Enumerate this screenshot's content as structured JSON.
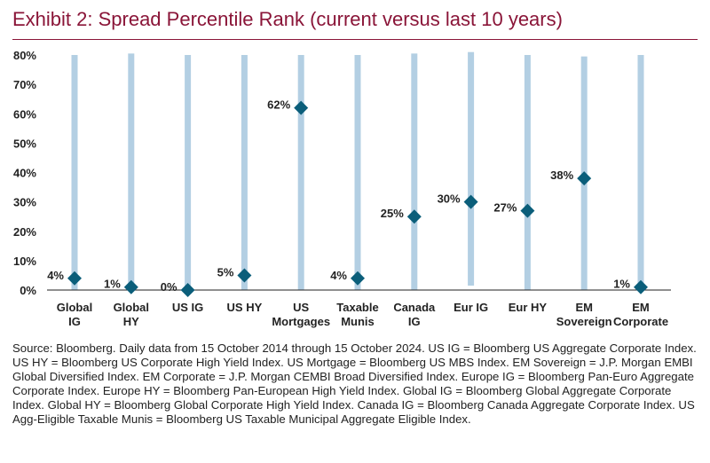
{
  "title": "Exhibit 2: Spread Percentile Rank (current versus last 10 years)",
  "source_note": "Source: Bloomberg. Daily data from 15 October 2014 through 15 October 2024. US IG = Bloomberg US Aggregate Corporate Index. US HY = Bloomberg US Corporate High Yield Index. US Mortgage = Bloomberg US MBS Index. EM Sovereign = J.P. Morgan EMBI Global Diversified Index. EM Corporate = J.P. Morgan CEMBI Broad Diversified Index. Europe IG = Bloomberg Pan-Euro Aggregate Corporate Index. Europe HY = Bloomberg Pan-European High Yield Index. Global IG = Bloomberg Global Aggregate Corporate Index. Global HY = Bloomberg Global Corporate High Yield Index. Canada IG = Bloomberg Canada Aggregate Corporate Index. US Agg-Eligible Taxable Munis = Bloomberg US Taxable Municipal Aggregate Eligible Index.",
  "colors": {
    "title": "#8a1538",
    "range_bar": "#b3cfe3",
    "marker": "#0b5e7a",
    "axis": "#222222"
  },
  "chart_data": {
    "type": "scatter",
    "categories": [
      [
        "Global",
        "IG"
      ],
      [
        "Global",
        "HY"
      ],
      [
        "US IG"
      ],
      [
        "US HY"
      ],
      [
        "US",
        "Mortgages"
      ],
      [
        "Taxable",
        "Munis"
      ],
      [
        "Canada",
        "IG"
      ],
      [
        "Eur IG"
      ],
      [
        "Eur HY"
      ],
      [
        "EM",
        "Sovereign"
      ],
      [
        "EM",
        "Corporate"
      ]
    ],
    "values": [
      4,
      1,
      0,
      5,
      62,
      4,
      25,
      30,
      27,
      38,
      1
    ],
    "value_labels": [
      "4%",
      "1%",
      "0%",
      "5%",
      "62%",
      "4%",
      "25%",
      "30%",
      "27%",
      "38%",
      "1%"
    ],
    "range_bars": [
      [
        0,
        80
      ],
      [
        0,
        80.5
      ],
      [
        0,
        80
      ],
      [
        0,
        80
      ],
      [
        0,
        80
      ],
      [
        0,
        80
      ],
      [
        0,
        80.5
      ],
      [
        1.5,
        81
      ],
      [
        0,
        80
      ],
      [
        0,
        79.5
      ],
      [
        0,
        80
      ]
    ],
    "yticks": [
      "0%",
      "10%",
      "20%",
      "30%",
      "40%",
      "50%",
      "60%",
      "70%",
      "80%"
    ],
    "ylim": [
      0,
      80
    ],
    "grid": false,
    "legend": "none"
  }
}
